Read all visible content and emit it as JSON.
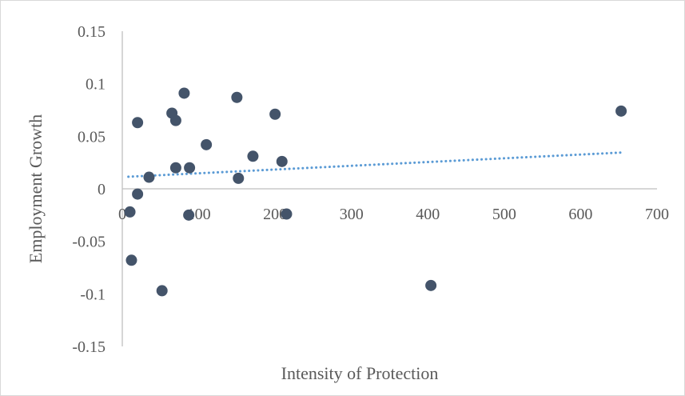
{
  "chart_data": {
    "type": "scatter",
    "title": "",
    "xlabel": "Intensity of Protection",
    "ylabel": "Employment Growth",
    "xlim": [
      0,
      700
    ],
    "ylim": [
      -0.15,
      0.15
    ],
    "x_ticks": [
      "0",
      "100",
      "200",
      "300",
      "400",
      "500",
      "600",
      "700"
    ],
    "y_ticks": [
      "0.15",
      "0.1",
      "0.05",
      "0",
      "-0.05",
      "-0.1",
      "-0.15"
    ],
    "grid": false,
    "legend": "none",
    "series": [
      {
        "marker_color": "#44546a",
        "points": [
          {
            "x": 81,
            "y": 0.091
          },
          {
            "x": 150,
            "y": 0.087
          },
          {
            "x": 653,
            "y": 0.074
          },
          {
            "x": 65,
            "y": 0.072
          },
          {
            "x": 200,
            "y": 0.071
          },
          {
            "x": 70,
            "y": 0.065
          },
          {
            "x": 20,
            "y": 0.063
          },
          {
            "x": 110,
            "y": 0.042
          },
          {
            "x": 171,
            "y": 0.031
          },
          {
            "x": 209,
            "y": 0.026
          },
          {
            "x": 88,
            "y": 0.02
          },
          {
            "x": 70,
            "y": 0.02
          },
          {
            "x": 35,
            "y": 0.011
          },
          {
            "x": 152,
            "y": 0.01
          },
          {
            "x": 20,
            "y": -0.005
          },
          {
            "x": 10,
            "y": -0.022
          },
          {
            "x": 87,
            "y": -0.025
          },
          {
            "x": 215,
            "y": -0.024
          },
          {
            "x": 12,
            "y": -0.068
          },
          {
            "x": 52,
            "y": -0.097
          },
          {
            "x": 404,
            "y": -0.092
          }
        ]
      }
    ],
    "trendline": {
      "style": "dotted",
      "color": "#5b9bd5",
      "x": [
        8,
        653
      ],
      "y": [
        0.0115,
        0.0345
      ]
    }
  }
}
